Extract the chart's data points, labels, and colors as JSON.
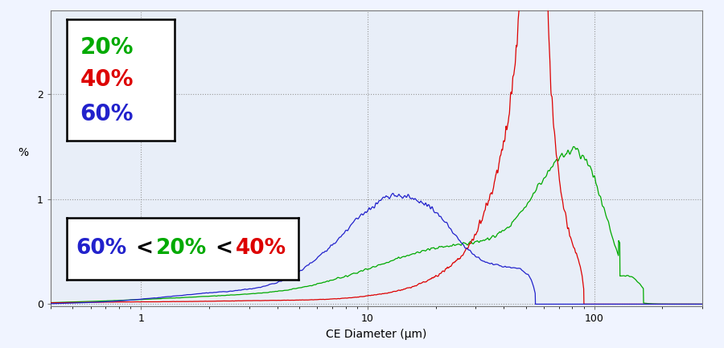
{
  "title": "",
  "xlabel": "CE Diameter (μm)",
  "ylabel": "%",
  "xlim": [
    0.4,
    300
  ],
  "ylim": [
    -0.02,
    2.8
  ],
  "yticks": [
    0,
    1,
    2
  ],
  "background_color": "#f0f4ff",
  "plot_bg_color": "#e8eef8",
  "grid_color": "#999999",
  "line_20_color": "#00aa00",
  "line_40_color": "#dd0000",
  "line_60_color": "#2222cc",
  "legend_20": "20%",
  "legend_40": "40%",
  "legend_60": "60%"
}
